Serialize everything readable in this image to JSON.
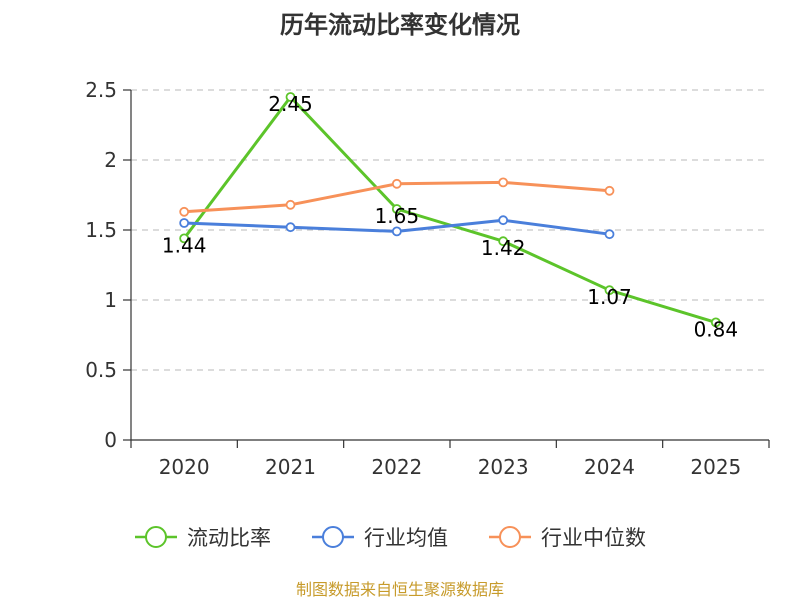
{
  "chart_data": {
    "type": "line",
    "title": "历年流动比率变化情况",
    "categories": [
      "2020",
      "2021",
      "2022",
      "2023",
      "2024",
      "2025"
    ],
    "ylim": [
      0,
      2.5
    ],
    "yticks": [
      0,
      0.5,
      1,
      1.5,
      2,
      2.5
    ],
    "ytick_labels": [
      "0",
      "0.5",
      "1",
      "1.5",
      "2",
      "2.5"
    ],
    "grid": true,
    "legend_position": "bottom",
    "series": [
      {
        "name": "流动比率",
        "color": "#5cc42a",
        "values": [
          1.44,
          2.45,
          1.65,
          1.42,
          1.07,
          0.84
        ],
        "labels": [
          "1.44",
          "2.45",
          "1.65",
          "1.42",
          "1.07",
          "0.84"
        ],
        "show_labels": true
      },
      {
        "name": "行业均值",
        "color": "#4a7fdb",
        "values": [
          1.55,
          1.52,
          1.49,
          1.57,
          1.47,
          null
        ],
        "show_labels": false
      },
      {
        "name": "行业中位数",
        "color": "#f79159",
        "values": [
          1.63,
          1.68,
          1.83,
          1.84,
          1.78,
          null
        ],
        "show_labels": false
      }
    ],
    "source": "制图数据来自恒生聚源数据库",
    "source_color": "#c79b2b"
  }
}
